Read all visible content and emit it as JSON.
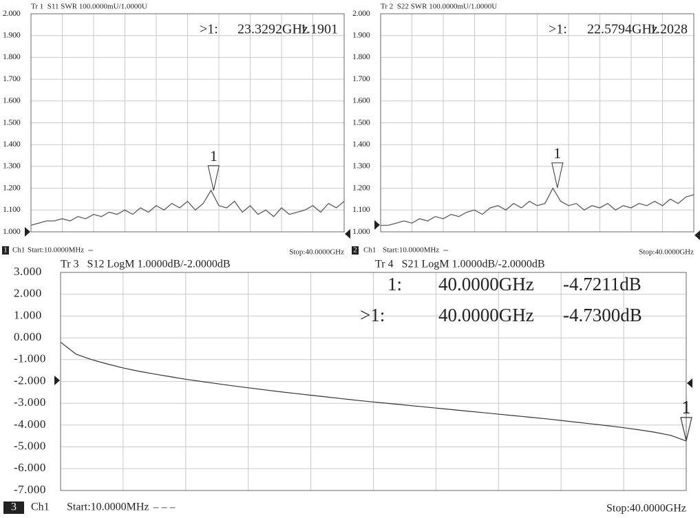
{
  "chart_data": [
    {
      "type": "line",
      "title": "Tr 1  S11 SWR 100.0000mU/1.0000U",
      "channel": "1",
      "channel_label": "Ch1",
      "start_label": "Start:10.0000MHz",
      "stop_label": "Stop:40.0000GHz",
      "xlim": [
        0.01,
        40
      ],
      "ylim": [
        1,
        2
      ],
      "grid": true,
      "yticks": [
        {
          "value": 2,
          "label": "2.000"
        },
        {
          "value": 1.9,
          "label": "1.900"
        },
        {
          "value": 1.8,
          "label": "1.800"
        },
        {
          "value": 1.7,
          "label": "1.700"
        },
        {
          "value": 1.6,
          "label": "1.600"
        },
        {
          "value": 1.5,
          "label": "1.500"
        },
        {
          "value": 1.4,
          "label": "1.400"
        },
        {
          "value": 1.3,
          "label": "1.300"
        },
        {
          "value": 1.2,
          "label": "1.200"
        },
        {
          "value": 1.1,
          "label": "1.100"
        },
        {
          "value": 1,
          "label": "1.000"
        }
      ],
      "x": [
        0.01,
        1,
        2,
        3,
        4,
        5,
        6,
        7,
        8,
        9,
        10,
        11,
        12,
        13,
        14,
        15,
        16,
        17,
        18,
        19,
        20,
        21,
        22,
        23,
        24,
        25,
        26,
        27,
        28,
        29,
        30,
        31,
        32,
        33,
        34,
        35,
        36,
        37,
        38,
        39,
        40
      ],
      "series": [
        {
          "color": "#5a5a5a",
          "values": [
            1.03,
            1.04,
            1.05,
            1.05,
            1.06,
            1.05,
            1.07,
            1.06,
            1.08,
            1.07,
            1.09,
            1.08,
            1.1,
            1.08,
            1.11,
            1.09,
            1.12,
            1.1,
            1.13,
            1.11,
            1.14,
            1.1,
            1.13,
            1.19,
            1.12,
            1.11,
            1.14,
            1.09,
            1.12,
            1.08,
            1.1,
            1.07,
            1.11,
            1.08,
            1.09,
            1.1,
            1.12,
            1.09,
            1.13,
            1.11,
            1.14
          ]
        }
      ],
      "markers": [
        {
          "number": "1",
          "prefix": ">1:",
          "x": 23.3292,
          "x_label": "23.3292GHz",
          "value": 1.1901
        }
      ]
    },
    {
      "type": "line",
      "title": "Tr 2  S22 SWR 100.0000mU/1.0000U",
      "channel": "2",
      "channel_label": "Ch1",
      "start_label": "Start:10.0000MHz",
      "stop_label": "Stop:40.0000GHz",
      "xlim": [
        0.01,
        40
      ],
      "ylim": [
        1,
        2
      ],
      "grid": true,
      "yticks": [
        {
          "value": 2,
          "label": "2.000"
        },
        {
          "value": 1.9,
          "label": "1.900"
        },
        {
          "value": 1.8,
          "label": "1.800"
        },
        {
          "value": 1.7,
          "label": "1.700"
        },
        {
          "value": 1.6,
          "label": "1.600"
        },
        {
          "value": 1.5,
          "label": "1.500"
        },
        {
          "value": 1.4,
          "label": "1.400"
        },
        {
          "value": 1.3,
          "label": "1.300"
        },
        {
          "value": 1.2,
          "label": "1.200"
        },
        {
          "value": 1.1,
          "label": "1.100"
        },
        {
          "value": 1,
          "label": "1.000"
        }
      ],
      "x": [
        0.01,
        1,
        2,
        3,
        4,
        5,
        6,
        7,
        8,
        9,
        10,
        11,
        12,
        13,
        14,
        15,
        16,
        17,
        18,
        19,
        20,
        21,
        22,
        23,
        24,
        25,
        26,
        27,
        28,
        29,
        30,
        31,
        32,
        33,
        34,
        35,
        36,
        37,
        38,
        39,
        40
      ],
      "series": [
        {
          "color": "#5a5a5a",
          "values": [
            1.03,
            1.03,
            1.04,
            1.05,
            1.04,
            1.06,
            1.05,
            1.07,
            1.06,
            1.08,
            1.07,
            1.09,
            1.1,
            1.08,
            1.11,
            1.12,
            1.1,
            1.13,
            1.11,
            1.14,
            1.12,
            1.13,
            1.2,
            1.14,
            1.12,
            1.13,
            1.1,
            1.12,
            1.11,
            1.13,
            1.1,
            1.12,
            1.11,
            1.13,
            1.12,
            1.14,
            1.12,
            1.15,
            1.13,
            1.16,
            1.17
          ]
        }
      ],
      "markers": [
        {
          "number": "1",
          "prefix": ">1:",
          "x": 22.5794,
          "x_label": "22.5794GHz",
          "value": 1.2028
        }
      ]
    },
    {
      "type": "line",
      "title": "Tr 3   S12 LogM 1.0000dB/-2.0000dB",
      "title2": "Tr 4   S21 LogM 1.0000dB/-2.0000dB",
      "channel": "3",
      "channel_label": "Ch1",
      "start_label": "Start:10.0000MHz",
      "stop_label": "Stop:40.0000GHz",
      "xlim": [
        0.01,
        40
      ],
      "ylim": [
        -7,
        3
      ],
      "grid": true,
      "yticks": [
        {
          "value": 3,
          "label": "3.000"
        },
        {
          "value": 2,
          "label": "2.000"
        },
        {
          "value": 1,
          "label": "1.000"
        },
        {
          "value": 0,
          "label": "0.000"
        },
        {
          "value": -1,
          "label": "-1.000"
        },
        {
          "value": -2,
          "label": "-2.000"
        },
        {
          "value": -3,
          "label": "-3.000"
        },
        {
          "value": -4,
          "label": "-4.000"
        },
        {
          "value": -5,
          "label": "-5.000"
        },
        {
          "value": -6,
          "label": "-6.000"
        },
        {
          "value": -7,
          "label": "-7.000"
        }
      ],
      "x": [
        0.01,
        1,
        2,
        3,
        4,
        5,
        6,
        7,
        8,
        9,
        10,
        11,
        12,
        13,
        14,
        15,
        16,
        17,
        18,
        19,
        20,
        21,
        22,
        23,
        24,
        25,
        26,
        27,
        28,
        29,
        30,
        31,
        32,
        33,
        34,
        35,
        36,
        37,
        38,
        39,
        40
      ],
      "series": [
        {
          "color": "#333333",
          "values": [
            -0.2,
            -0.75,
            -1.0,
            -1.2,
            -1.38,
            -1.53,
            -1.66,
            -1.78,
            -1.9,
            -2.0,
            -2.1,
            -2.2,
            -2.29,
            -2.38,
            -2.47,
            -2.55,
            -2.63,
            -2.71,
            -2.79,
            -2.87,
            -2.94,
            -3.01,
            -3.08,
            -3.15,
            -3.22,
            -3.29,
            -3.36,
            -3.43,
            -3.5,
            -3.57,
            -3.64,
            -3.71,
            -3.79,
            -3.87,
            -3.95,
            -4.03,
            -4.12,
            -4.22,
            -4.33,
            -4.47,
            -4.73
          ]
        }
      ],
      "markers": [
        {
          "number": "1",
          "prefix": "1:",
          "x": 40,
          "x_label": "40.0000GHz",
          "value": -4.7211,
          "value_label": "-4.7211dB"
        },
        {
          "number": "1",
          "prefix": ">1:",
          "x": 40,
          "x_label": "40.0000GHz",
          "value": -4.73,
          "value_label": "-4.7300dB"
        }
      ]
    }
  ]
}
